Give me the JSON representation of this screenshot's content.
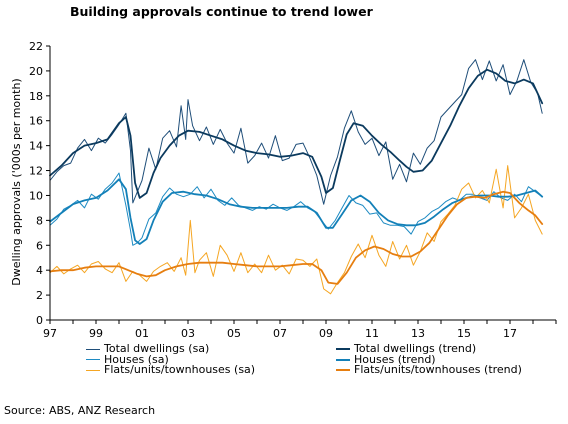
{
  "title": "Building approvals continue to trend lower",
  "source": "Source: ABS, ANZ Research",
  "chart_data": {
    "type": "line",
    "title": "Building approvals continue to trend lower",
    "xlabel": "",
    "ylabel": "Dwelling approvals ('000s per month)",
    "xlim": [
      1997.0,
      2019.0
    ],
    "ylim": [
      0,
      22
    ],
    "x_ticks": [
      1997,
      1999,
      2001,
      2003,
      2005,
      2007,
      2009,
      2011,
      2013,
      2015,
      2017
    ],
    "x_tick_labels": [
      "97",
      "99",
      "01",
      "03",
      "05",
      "07",
      "09",
      "11",
      "13",
      "15",
      "17"
    ],
    "y_ticks": [
      0,
      2,
      4,
      6,
      8,
      10,
      12,
      14,
      16,
      18,
      20,
      22
    ],
    "grid": false,
    "legend_position": "bottom",
    "colors": {
      "total_sa": "#1F4E79",
      "total_trend": "#0B3A5E",
      "houses_sa": "#1E8BC3",
      "houses_trend": "#1380B8",
      "flats_sa": "#F5A623",
      "flats_trend": "#E67E10"
    },
    "series": [
      {
        "name": "Total dwellings (sa)",
        "key": "total_sa",
        "width": 1,
        "x": [
          1997.0,
          1997.3,
          1997.6,
          1997.9,
          1998.2,
          1998.5,
          1998.8,
          1999.1,
          1999.4,
          1999.7,
          2000.0,
          2000.3,
          2000.5,
          2000.6,
          2000.8,
          2001.0,
          2001.3,
          2001.6,
          2001.9,
          2002.2,
          2002.5,
          2002.7,
          2002.9,
          2003.0,
          2003.2,
          2003.5,
          2003.8,
          2004.1,
          2004.4,
          2004.7,
          2005.0,
          2005.3,
          2005.6,
          2005.9,
          2006.2,
          2006.5,
          2006.8,
          2007.1,
          2007.4,
          2007.7,
          2008.0,
          2008.3,
          2008.6,
          2008.9,
          2009.2,
          2009.5,
          2009.8,
          2010.1,
          2010.4,
          2010.7,
          2011.0,
          2011.3,
          2011.6,
          2011.9,
          2012.2,
          2012.5,
          2012.8,
          2013.1,
          2013.4,
          2013.7,
          2014.0,
          2014.3,
          2014.6,
          2014.9,
          2015.2,
          2015.5,
          2015.8,
          2016.1,
          2016.4,
          2016.7,
          2017.0,
          2017.3,
          2017.6,
          2017.9,
          2018.2,
          2018.4
        ],
        "y": [
          11.2,
          11.9,
          12.4,
          12.6,
          13.8,
          14.5,
          13.6,
          14.6,
          14.2,
          14.9,
          15.7,
          16.6,
          13.6,
          9.4,
          10.3,
          11.2,
          13.8,
          12.1,
          14.6,
          15.2,
          13.9,
          17.2,
          14.5,
          17.7,
          15.6,
          14.4,
          15.5,
          14.1,
          15.3,
          14.2,
          13.4,
          15.4,
          12.6,
          13.2,
          14.2,
          13.0,
          14.8,
          12.8,
          13.0,
          14.1,
          14.2,
          13.0,
          11.6,
          9.3,
          11.6,
          13.1,
          15.4,
          16.8,
          15.1,
          14.1,
          14.6,
          13.2,
          14.3,
          11.3,
          12.5,
          11.1,
          13.4,
          12.5,
          13.8,
          14.4,
          16.3,
          16.9,
          17.5,
          18.1,
          20.2,
          20.9,
          19.3,
          20.8,
          19.2,
          20.5,
          18.1,
          19.2,
          20.9,
          19.1,
          18.2,
          16.6
        ]
      },
      {
        "name": "Total dwellings (trend)",
        "key": "total_trend",
        "width": 1.8,
        "x": [
          1997.0,
          1997.5,
          1998.0,
          1998.5,
          1999.0,
          1999.5,
          2000.0,
          2000.3,
          2000.5,
          2000.7,
          2000.9,
          2001.2,
          2001.5,
          2001.8,
          2002.2,
          2002.6,
          2003.0,
          2003.5,
          2004.0,
          2004.5,
          2005.0,
          2005.5,
          2006.0,
          2006.5,
          2007.0,
          2007.5,
          2008.0,
          2008.4,
          2008.8,
          2009.0,
          2009.3,
          2009.6,
          2009.9,
          2010.2,
          2010.6,
          2011.0,
          2011.4,
          2011.8,
          2012.2,
          2012.5,
          2012.8,
          2013.2,
          2013.6,
          2014.0,
          2014.4,
          2014.8,
          2015.2,
          2015.6,
          2016.0,
          2016.4,
          2016.8,
          2017.2,
          2017.6,
          2018.0,
          2018.4
        ],
        "y": [
          11.6,
          12.4,
          13.4,
          14.0,
          14.2,
          14.5,
          15.8,
          16.3,
          14.8,
          11.0,
          9.8,
          10.2,
          11.8,
          13.0,
          14.0,
          14.8,
          15.2,
          15.1,
          14.8,
          14.5,
          14.0,
          13.6,
          13.4,
          13.3,
          13.1,
          13.2,
          13.4,
          13.1,
          11.5,
          10.2,
          10.6,
          12.8,
          14.9,
          15.8,
          15.6,
          14.8,
          14.1,
          13.5,
          12.8,
          12.3,
          11.9,
          12.0,
          12.8,
          14.2,
          15.6,
          17.2,
          18.6,
          19.6,
          20.1,
          19.8,
          19.2,
          19.0,
          19.3,
          19.0,
          17.4
        ]
      },
      {
        "name": "Houses (sa)",
        "key": "houses_sa",
        "width": 1,
        "x": [
          1997.0,
          1997.3,
          1997.6,
          1997.9,
          1998.2,
          1998.5,
          1998.8,
          1999.1,
          1999.4,
          1999.7,
          2000.0,
          2000.3,
          2000.5,
          2000.6,
          2000.8,
          2001.0,
          2001.3,
          2001.6,
          2001.9,
          2002.2,
          2002.5,
          2002.8,
          2003.1,
          2003.4,
          2003.7,
          2004.0,
          2004.3,
          2004.6,
          2004.9,
          2005.2,
          2005.5,
          2005.8,
          2006.1,
          2006.4,
          2006.7,
          2007.0,
          2007.3,
          2007.6,
          2007.9,
          2008.2,
          2008.5,
          2008.8,
          2009.1,
          2009.4,
          2009.7,
          2010.0,
          2010.3,
          2010.6,
          2010.9,
          2011.2,
          2011.5,
          2011.8,
          2012.1,
          2012.4,
          2012.7,
          2013.0,
          2013.3,
          2013.6,
          2013.9,
          2014.2,
          2014.5,
          2014.8,
          2015.1,
          2015.4,
          2015.7,
          2016.0,
          2016.3,
          2016.6,
          2016.9,
          2017.2,
          2017.5,
          2017.8,
          2018.1,
          2018.4
        ],
        "y": [
          7.6,
          8.1,
          8.9,
          9.2,
          9.6,
          9.0,
          10.1,
          9.7,
          10.5,
          11.0,
          11.8,
          9.2,
          7.2,
          6.0,
          6.2,
          6.6,
          8.1,
          8.6,
          9.9,
          10.6,
          10.1,
          9.9,
          10.1,
          10.7,
          9.8,
          10.5,
          9.6,
          9.2,
          9.8,
          9.2,
          9.0,
          8.8,
          9.1,
          8.9,
          9.3,
          9.0,
          8.8,
          9.1,
          9.5,
          9.0,
          8.7,
          8.0,
          7.3,
          8.0,
          9.0,
          10.0,
          9.4,
          9.2,
          8.5,
          8.6,
          7.8,
          7.6,
          7.6,
          7.5,
          6.9,
          7.9,
          8.2,
          8.7,
          9.0,
          9.5,
          9.8,
          9.6,
          10.1,
          10.1,
          9.8,
          9.6,
          10.3,
          9.8,
          9.6,
          10.1,
          9.5,
          10.7,
          10.3,
          9.9
        ]
      },
      {
        "name": "Houses (trend)",
        "key": "houses_trend",
        "width": 1.8,
        "x": [
          1997.0,
          1997.5,
          1998.0,
          1998.5,
          1999.0,
          1999.5,
          2000.0,
          2000.3,
          2000.5,
          2000.7,
          2000.9,
          2001.2,
          2001.5,
          2001.9,
          2002.3,
          2002.8,
          2003.3,
          2003.8,
          2004.3,
          2004.8,
          2005.3,
          2005.8,
          2006.3,
          2006.8,
          2007.3,
          2007.8,
          2008.2,
          2008.6,
          2009.0,
          2009.3,
          2009.7,
          2010.1,
          2010.5,
          2010.9,
          2011.3,
          2011.7,
          2012.1,
          2012.5,
          2012.9,
          2013.3,
          2013.7,
          2014.1,
          2014.5,
          2014.9,
          2015.3,
          2015.7,
          2016.1,
          2016.5,
          2016.9,
          2017.3,
          2017.7,
          2018.1,
          2018.4
        ],
        "y": [
          7.9,
          8.6,
          9.3,
          9.6,
          9.8,
          10.4,
          11.3,
          10.5,
          8.2,
          6.4,
          6.1,
          6.5,
          8.0,
          9.5,
          10.2,
          10.3,
          10.1,
          10.0,
          9.7,
          9.3,
          9.1,
          9.0,
          9.0,
          9.0,
          9.0,
          9.1,
          9.1,
          8.6,
          7.4,
          7.4,
          8.5,
          9.6,
          10.0,
          9.5,
          8.6,
          8.0,
          7.7,
          7.6,
          7.6,
          7.8,
          8.3,
          8.9,
          9.4,
          9.7,
          9.9,
          10.0,
          10.0,
          9.9,
          9.9,
          10.0,
          10.2,
          10.4,
          9.9
        ]
      },
      {
        "name": "Flats/units/townhouses (sa)",
        "key": "flats_sa",
        "width": 1,
        "x": [
          1997.0,
          1997.3,
          1997.6,
          1997.9,
          1998.2,
          1998.5,
          1998.8,
          1999.1,
          1999.4,
          1999.7,
          2000.0,
          2000.3,
          2000.6,
          2000.9,
          2001.2,
          2001.5,
          2001.8,
          2002.1,
          2002.4,
          2002.7,
          2002.9,
          2003.1,
          2003.3,
          2003.5,
          2003.8,
          2004.1,
          2004.4,
          2004.7,
          2005.0,
          2005.3,
          2005.6,
          2005.9,
          2006.2,
          2006.5,
          2006.8,
          2007.1,
          2007.4,
          2007.7,
          2008.0,
          2008.3,
          2008.6,
          2008.9,
          2009.2,
          2009.5,
          2009.8,
          2010.1,
          2010.4,
          2010.7,
          2011.0,
          2011.3,
          2011.6,
          2011.9,
          2012.2,
          2012.5,
          2012.8,
          2013.1,
          2013.4,
          2013.7,
          2014.0,
          2014.3,
          2014.6,
          2014.9,
          2015.2,
          2015.5,
          2015.8,
          2016.1,
          2016.4,
          2016.7,
          2016.9,
          2017.2,
          2017.5,
          2017.8,
          2018.1,
          2018.4
        ],
        "y": [
          3.8,
          4.3,
          3.7,
          4.1,
          4.4,
          3.8,
          4.5,
          4.7,
          4.1,
          3.8,
          4.6,
          3.1,
          3.9,
          3.6,
          3.1,
          3.9,
          4.3,
          4.6,
          3.9,
          5.0,
          3.6,
          8.0,
          3.8,
          4.8,
          5.4,
          3.5,
          6.0,
          5.2,
          3.9,
          5.4,
          3.8,
          4.5,
          3.8,
          5.2,
          4.0,
          4.4,
          3.7,
          4.9,
          4.8,
          4.3,
          4.9,
          2.5,
          2.1,
          3.0,
          3.8,
          5.1,
          6.1,
          5.0,
          6.8,
          5.2,
          4.3,
          6.3,
          4.9,
          6.0,
          4.4,
          5.5,
          7.0,
          6.3,
          7.9,
          8.5,
          9.2,
          10.5,
          11.0,
          9.8,
          10.4,
          9.4,
          12.1,
          9.0,
          12.4,
          8.2,
          9.0,
          10.1,
          8.0,
          6.9
        ]
      },
      {
        "name": "Flats/units/townhouses (trend)",
        "key": "flats_trend",
        "width": 1.8,
        "x": [
          1997.0,
          1997.5,
          1998.0,
          1998.5,
          1999.0,
          1999.5,
          2000.0,
          2000.4,
          2000.8,
          2001.2,
          2001.6,
          2002.0,
          2002.5,
          2003.0,
          2003.5,
          2004.0,
          2004.5,
          2005.0,
          2005.5,
          2006.0,
          2006.5,
          2007.0,
          2007.5,
          2008.0,
          2008.4,
          2008.8,
          2009.1,
          2009.5,
          2009.9,
          2010.3,
          2010.7,
          2011.1,
          2011.5,
          2011.9,
          2012.3,
          2012.7,
          2013.1,
          2013.5,
          2013.9,
          2014.3,
          2014.7,
          2015.1,
          2015.5,
          2015.9,
          2016.3,
          2016.7,
          2017.0,
          2017.4,
          2017.8,
          2018.1,
          2018.4
        ],
        "y": [
          3.9,
          4.0,
          4.0,
          4.2,
          4.3,
          4.3,
          4.3,
          4.0,
          3.7,
          3.5,
          3.6,
          4.0,
          4.3,
          4.5,
          4.6,
          4.6,
          4.6,
          4.5,
          4.4,
          4.3,
          4.3,
          4.3,
          4.4,
          4.5,
          4.5,
          4.0,
          3.0,
          2.9,
          3.8,
          5.0,
          5.6,
          5.9,
          5.7,
          5.3,
          5.1,
          5.1,
          5.5,
          6.2,
          7.3,
          8.4,
          9.3,
          9.8,
          9.9,
          9.8,
          10.1,
          10.3,
          10.2,
          9.4,
          8.8,
          8.4,
          7.7
        ]
      }
    ]
  }
}
